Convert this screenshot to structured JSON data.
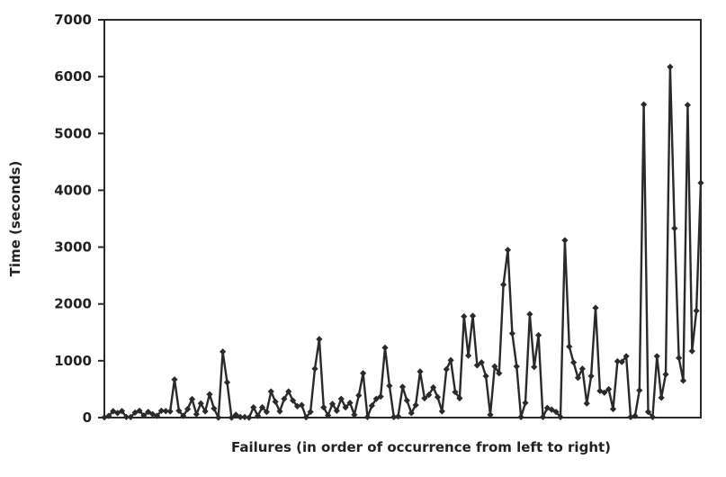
{
  "chart_data": {
    "type": "line",
    "title": "",
    "xlabel": "Failures (in order of occurrence from left to right)",
    "ylabel": "Time (seconds)",
    "ylim": [
      0,
      7000
    ],
    "yticks": [
      0,
      1000,
      2000,
      3000,
      4000,
      5000,
      6000,
      7000
    ],
    "ytick_labels": [
      "0",
      "1000",
      "2000",
      "3000",
      "4000",
      "5000",
      "6000",
      "7000"
    ],
    "grid": false,
    "legend": "none",
    "series": [
      {
        "marker": "diamond",
        "color": "#2a2a2a",
        "values": [
          3,
          30,
          113,
          81,
          115,
          10,
          9,
          88,
          120,
          36,
          100,
          60,
          30,
          120,
          115,
          108,
          670,
          120,
          30,
          150,
          325,
          60,
          250,
          110,
          410,
          160,
          0,
          1160,
          620,
          0,
          50,
          10,
          10,
          0,
          180,
          30,
          180,
          100,
          460,
          280,
          110,
          330,
          460,
          300,
          200,
          220,
          5,
          100,
          860,
          1380,
          180,
          40,
          240,
          120,
          330,
          180,
          260,
          50,
          390,
          780,
          10,
          210,
          330,
          370,
          1230,
          560,
          10,
          20,
          540,
          300,
          80,
          220,
          810,
          340,
          400,
          530,
          360,
          110,
          850,
          1010,
          450,
          340,
          1780,
          1090,
          1790,
          920,
          970,
          730,
          50,
          900,
          780,
          2340,
          2950,
          1480,
          900,
          10,
          260,
          1820,
          890,
          1450,
          10,
          170,
          140,
          100,
          10,
          3120,
          1250,
          970,
          700,
          860,
          250,
          730,
          1930,
          470,
          440,
          500,
          150,
          990,
          980,
          1080,
          10,
          30,
          480,
          5510,
          100,
          10,
          1080,
          350,
          760,
          6170,
          3330,
          1050,
          650,
          5500,
          1170,
          1880,
          4130
        ]
      }
    ]
  }
}
